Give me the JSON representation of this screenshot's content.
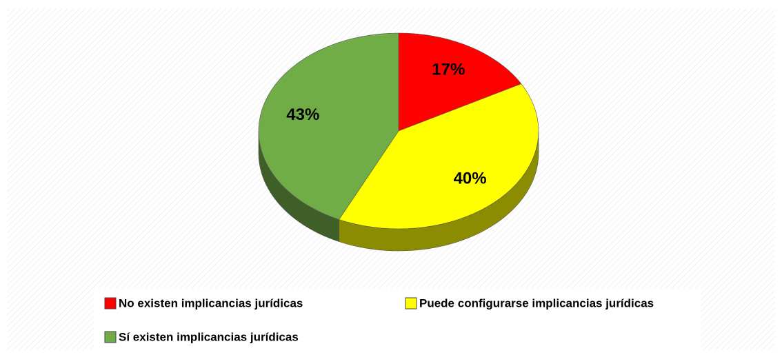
{
  "chart_data": {
    "type": "pie",
    "categories": [
      "No existen implicancias jurídicas",
      "Puede configurarse implicancias jurídicas",
      "Sí existen implicancias jurídicas"
    ],
    "values": [
      17,
      40,
      43
    ],
    "value_labels": [
      "17%",
      "40%",
      "43%"
    ],
    "colors": [
      "#ff0000",
      "#ffff00",
      "#70ad47"
    ],
    "legend": "bottom"
  }
}
